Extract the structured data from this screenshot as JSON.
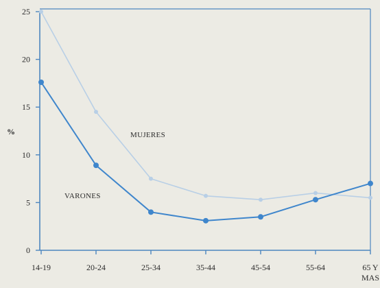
{
  "chart_data": {
    "type": "line",
    "categories": [
      "14-19",
      "20-24",
      "25-34",
      "35-44",
      "45-54",
      "55-64",
      "65 Y MAS"
    ],
    "category_lines": [
      [
        "14-19"
      ],
      [
        "20-24"
      ],
      [
        "25-34"
      ],
      [
        "35-44"
      ],
      [
        "45-54"
      ],
      [
        "55-64"
      ],
      [
        "65 Y",
        "MAS"
      ]
    ],
    "ylabel": "%",
    "ylim": [
      0,
      25
    ],
    "yticks": [
      0,
      5,
      10,
      15,
      20,
      25
    ],
    "grid": false,
    "series": [
      {
        "name": "MUJERES",
        "values": [
          25,
          14.5,
          7.5,
          5.7,
          5.3,
          6.0,
          5.5
        ],
        "color": "#b8cfe6"
      },
      {
        "name": "VARONES",
        "values": [
          17.6,
          8.9,
          4.0,
          3.1,
          3.5,
          5.3,
          7.0
        ],
        "color": "#3f86cc"
      }
    ],
    "axis_color": "#4d86bf"
  }
}
